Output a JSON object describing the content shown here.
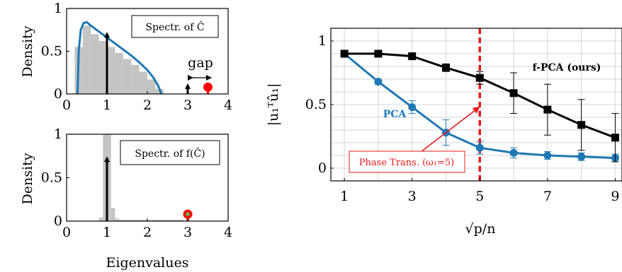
{
  "chart_data": [
    {
      "type": "area",
      "legend_box": "Spectr. of Ĉ",
      "ylabel": "Density",
      "xlabel": "",
      "xlim": [
        0,
        4
      ],
      "ylim": [
        0,
        1
      ],
      "xticks": [
        "0",
        "1",
        "2",
        "3",
        "4"
      ],
      "yticks": [
        "0",
        "0.5",
        "1"
      ],
      "histogram": {
        "color": "#c4c4c4",
        "x": [
          0.3,
          0.5,
          0.7,
          0.9,
          1.1,
          1.3,
          1.5,
          1.7,
          1.9,
          2.1,
          2.3
        ],
        "values": [
          0.55,
          0.8,
          0.7,
          0.62,
          0.55,
          0.48,
          0.41,
          0.34,
          0.26,
          0.17,
          0.06
        ]
      },
      "density_curve": {
        "color": "#1f77b4",
        "x": [
          0.27,
          0.3,
          0.35,
          0.42,
          0.5,
          0.6,
          0.8,
          1.0,
          1.2,
          1.4,
          1.6,
          1.8,
          2.0,
          2.15,
          2.25,
          2.3,
          2.33,
          2.35
        ],
        "y": [
          0.0,
          0.5,
          0.75,
          0.83,
          0.84,
          0.8,
          0.73,
          0.66,
          0.59,
          0.52,
          0.45,
          0.37,
          0.28,
          0.19,
          0.11,
          0.06,
          0.02,
          0.0
        ]
      },
      "spikes": [
        {
          "x": 1.0,
          "height": 0.75,
          "color": "#000000"
        },
        {
          "x": 3.0,
          "height": 0.15,
          "color": "#000000"
        }
      ],
      "outlier": {
        "x": 3.5,
        "height": 0.08,
        "color": "#ff0000"
      },
      "annotation": "gap"
    },
    {
      "type": "area",
      "legend_box": "Spectr. of f(Ĉ)",
      "ylabel": "Density",
      "xlabel": "Eigenvalues",
      "xlim": [
        0,
        4
      ],
      "ylim": [
        0,
        1
      ],
      "xticks": [
        "0",
        "1",
        "2",
        "3",
        "4"
      ],
      "yticks": [
        "0",
        "0.5",
        "1"
      ],
      "histogram": {
        "color": "#c4c4c4",
        "x": [
          0.85,
          0.95,
          1.05,
          1.15,
          1.25,
          2.0,
          3.0
        ],
        "values": [
          0.04,
          1.0,
          1.0,
          0.15,
          0.03,
          0.005,
          0.02
        ]
      },
      "spikes": [
        {
          "x": 1.0,
          "height": 0.77,
          "color": "#000000"
        }
      ],
      "outlier": {
        "x": 3.0,
        "height": 0.08,
        "color": "#ff0000",
        "inner_color": "#6aa84f"
      }
    },
    {
      "type": "line",
      "xlabel": "√p/n",
      "ylabel": "|u₁ᵀû₁|",
      "xlim": [
        0.6,
        9.2
      ],
      "ylim": [
        -0.1,
        1.1
      ],
      "xticks": [
        "1",
        "3",
        "5",
        "7",
        "9"
      ],
      "yticks": [
        "0",
        "0.5",
        "1"
      ],
      "grid": true,
      "x": [
        1,
        2,
        3,
        4,
        5,
        6,
        7,
        8,
        9
      ],
      "series": [
        {
          "name": "f-PCA (ours)",
          "color": "#000000",
          "marker": "square",
          "values": [
            0.9,
            0.9,
            0.88,
            0.79,
            0.71,
            0.59,
            0.46,
            0.34,
            0.24
          ],
          "errors": [
            0.01,
            0.01,
            0.02,
            0.03,
            0.05,
            0.16,
            0.2,
            0.2,
            0.19
          ]
        },
        {
          "name": "PCA",
          "color": "#1f77b4",
          "marker": "circle",
          "values": [
            0.9,
            0.68,
            0.48,
            0.28,
            0.16,
            0.12,
            0.1,
            0.09,
            0.08
          ],
          "errors": [
            0.01,
            0.02,
            0.05,
            0.1,
            0.05,
            0.04,
            0.03,
            0.03,
            0.03
          ]
        }
      ],
      "phase_transition": {
        "x": 5,
        "label": "Phase Trans. (ω₁=5)",
        "color": "#e8191b"
      }
    }
  ]
}
